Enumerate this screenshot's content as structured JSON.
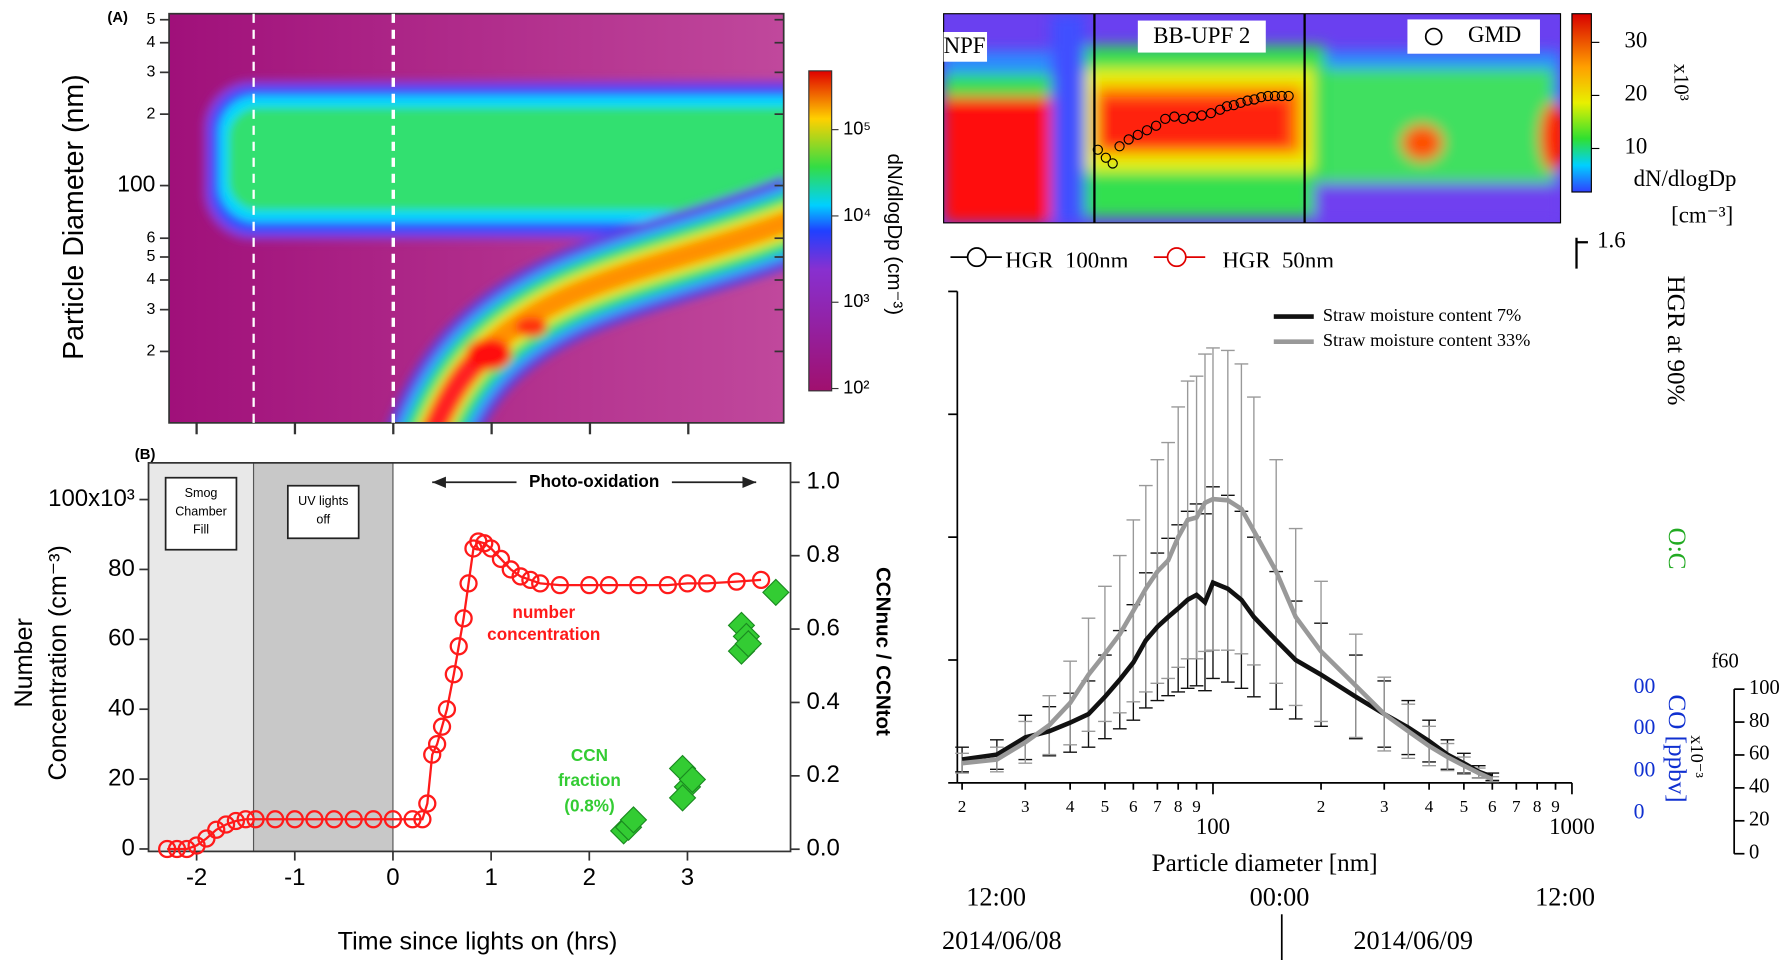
{
  "chart_data": [
    {
      "type": "heatmap",
      "title": "(A)",
      "y_label": "Particle Diameter (nm)",
      "log_y": true,
      "xlim": [
        -2.28,
        3.97
      ],
      "xticks": [
        -2,
        -1,
        0,
        1,
        2,
        3
      ],
      "ylim": [
        10,
        530
      ],
      "yticks": [
        {
          "value": 500,
          "label": "5"
        },
        {
          "value": 400,
          "label": "4"
        },
        {
          "value": 300,
          "label": "3"
        },
        {
          "value": 200,
          "label": "2"
        },
        100,
        {
          "value": 60,
          "label": "6"
        },
        {
          "value": 50,
          "label": "5"
        },
        {
          "value": 40,
          "label": "4"
        },
        {
          "value": 30,
          "label": "3"
        },
        {
          "value": 20,
          "label": "2"
        }
      ],
      "marker_lines": [
        -1.42,
        0
      ],
      "colorbar": {
        "label": "dN/dlogDp (cm⁻³)",
        "log": true,
        "lim": [
          94,
          480000
        ],
        "ticks": [
          {
            "value": 100000,
            "label": "10⁵"
          },
          {
            "value": 10000,
            "label": "10⁴"
          },
          {
            "value": 1000,
            "label": "10³"
          },
          {
            "value": 100,
            "label": "10²"
          }
        ]
      }
    },
    {
      "type": "line",
      "title": "(B)",
      "x_label": "Time since lights on (hrs)",
      "y_label": [
        "Number",
        "Concentration (cm⁻³)"
      ],
      "y2_label": "CCNnuc / CCNtot",
      "xlim": [
        -2.49,
        4.05
      ],
      "xticks": [
        -2,
        -1,
        0,
        1,
        2,
        3
      ],
      "ylim": [
        -0.7,
        110.5
      ],
      "yticks": [
        0,
        20,
        40,
        60,
        80,
        {
          "value": 100,
          "label": "100x10³"
        }
      ],
      "y2lim": [
        -0.006,
        1.053
      ],
      "y2ticks": [
        {
          "value": 0,
          "label": "0.0"
        },
        {
          "value": 0.2,
          "label": "0.2"
        },
        {
          "value": 0.4,
          "label": "0.4"
        },
        {
          "value": 0.6,
          "label": "0.6"
        },
        {
          "value": 0.8,
          "label": "0.8"
        },
        {
          "value": 1,
          "label": "1.0"
        }
      ],
      "regions": [
        {
          "x": [
            -2.49,
            -1.42
          ],
          "label": [
            "Smog",
            "Chamber",
            "Fill"
          ],
          "color": "#e8e8e8"
        },
        {
          "x": [
            -1.42,
            0
          ],
          "label": [
            "UV lights",
            "off"
          ],
          "color": "#c8c8c8"
        }
      ],
      "photo_oxidation": {
        "text": "Photo-oxidation",
        "x": [
          0.4,
          3.7
        ]
      },
      "series": [
        {
          "label": [
            "number",
            "concentration"
          ],
          "color": "#ff1a1a",
          "x": [
            -2.3,
            -2.2,
            -2.1,
            -2.0,
            -1.9,
            -1.8,
            -1.7,
            -1.6,
            -1.5,
            -1.4,
            -1.2,
            -1.0,
            -0.8,
            -0.6,
            -0.4,
            -0.2,
            0.0,
            0.2,
            0.3,
            0.35,
            0.4,
            0.45,
            0.5,
            0.55,
            0.62,
            0.67,
            0.72,
            0.77,
            0.82,
            0.87,
            0.93,
            1.0,
            1.1,
            1.2,
            1.3,
            1.4,
            1.5,
            1.7,
            2.0,
            2.2,
            2.5,
            2.8,
            3.0,
            3.2,
            3.5,
            3.75
          ],
          "values": [
            0,
            0,
            0,
            1,
            3,
            5.5,
            7,
            8,
            8.5,
            8.5,
            8.5,
            8.5,
            8.5,
            8.5,
            8.5,
            8.5,
            8.5,
            8.5,
            8.5,
            13,
            27,
            30,
            35,
            40,
            50,
            58,
            66,
            76,
            86,
            88,
            87.5,
            86,
            83,
            80,
            78,
            77,
            76,
            75.5,
            75.5,
            75.5,
            75.5,
            75.5,
            76,
            76,
            76.5,
            77
          ]
        },
        {
          "label": [
            "CCN",
            "fraction",
            "(0.8%)"
          ],
          "color": "#33cc33",
          "axis": "y2",
          "x": [
            2.35,
            2.4,
            2.45,
            2.95,
            3.0,
            2.95,
            3.05,
            3.55,
            3.6,
            3.55,
            3.62,
            3.9
          ],
          "values": [
            0.05,
            0.06,
            0.08,
            0.22,
            0.17,
            0.14,
            0.19,
            0.61,
            0.58,
            0.54,
            0.56,
            0.7
          ]
        }
      ]
    },
    {
      "type": "heatmap",
      "labels": [
        "NPF",
        "BB-UPF 2"
      ],
      "legend": "GMD",
      "colorbar": {
        "label": [
          "dN/dlogDp",
          "[cm⁻³]"
        ],
        "scale": "x10³",
        "lim": [
          1.8,
          35.4
        ],
        "ticks": [
          10,
          20,
          30
        ]
      }
    },
    {
      "type": "line",
      "x_label": "Particle diameter [nm]",
      "log_x": true,
      "xlim": [
        19.4,
        1000
      ],
      "ylim": [
        0,
        4
      ],
      "xticks": [
        {
          "value": 20,
          "label": "2"
        },
        {
          "value": 30,
          "label": "3"
        },
        {
          "value": 40,
          "label": "4"
        },
        {
          "value": 50,
          "label": "5"
        },
        {
          "value": 60,
          "label": "6"
        },
        {
          "value": 70,
          "label": "7"
        },
        {
          "value": 80,
          "label": "8"
        },
        {
          "value": 90,
          "label": "9"
        },
        100,
        {
          "value": 200,
          "label": "2"
        },
        {
          "value": 300,
          "label": "3"
        },
        {
          "value": 400,
          "label": "4"
        },
        {
          "value": 500,
          "label": "5"
        },
        {
          "value": 600,
          "label": "6"
        },
        {
          "value": 700,
          "label": "7"
        },
        {
          "value": 800,
          "label": "8"
        },
        {
          "value": 900,
          "label": "9"
        },
        1000
      ],
      "x": [
        20,
        25,
        30,
        35,
        40,
        45,
        50,
        55,
        60,
        65,
        70,
        75,
        80,
        85,
        90,
        95,
        100,
        110,
        120,
        130,
        150,
        170,
        200,
        250,
        300,
        350,
        400,
        450,
        500,
        550,
        600
      ],
      "series": [
        {
          "name": "Straw moisture content 7%",
          "color": "#111111",
          "values": [
            0.19,
            0.23,
            0.37,
            0.42,
            0.49,
            0.56,
            0.7,
            0.84,
            0.98,
            1.16,
            1.27,
            1.35,
            1.42,
            1.49,
            1.53,
            1.47,
            1.63,
            1.58,
            1.49,
            1.35,
            1.16,
            1.0,
            0.88,
            0.7,
            0.56,
            0.45,
            0.34,
            0.23,
            0.16,
            0.09,
            0.05
          ],
          "errors": [
            0.1,
            0.12,
            0.18,
            0.2,
            0.24,
            0.27,
            0.34,
            0.4,
            0.47,
            0.55,
            0.6,
            0.64,
            0.68,
            0.72,
            0.74,
            0.72,
            0.78,
            0.76,
            0.72,
            0.65,
            0.56,
            0.48,
            0.42,
            0.34,
            0.27,
            0.22,
            0.17,
            0.12,
            0.08,
            0.05,
            0.03
          ]
        },
        {
          "name": "Straw moisture content 33%",
          "color": "#999999",
          "values": [
            0.16,
            0.19,
            0.33,
            0.47,
            0.65,
            0.88,
            1.05,
            1.21,
            1.4,
            1.58,
            1.72,
            1.81,
            2.0,
            2.14,
            2.16,
            2.28,
            2.31,
            2.3,
            2.23,
            2.05,
            1.72,
            1.35,
            1.07,
            0.79,
            0.56,
            0.42,
            0.3,
            0.21,
            0.14,
            0.08,
            0.03
          ],
          "errors": [
            0.08,
            0.1,
            0.17,
            0.24,
            0.34,
            0.46,
            0.55,
            0.64,
            0.74,
            0.84,
            0.91,
            0.96,
            1.06,
            1.13,
            1.15,
            1.21,
            1.23,
            1.22,
            1.18,
            1.09,
            0.91,
            0.72,
            0.57,
            0.42,
            0.3,
            0.22,
            0.16,
            0.11,
            0.07,
            0.04,
            0.02
          ]
        }
      ]
    },
    {
      "type": "axes",
      "legend": [
        "HGR_100nm",
        "HGR_50nm"
      ],
      "hgr_ticks": [
        1.6
      ],
      "hgr_label": "HGR at 90%",
      "oc_label": "O:C",
      "co_label": "CO [ppbv]",
      "co_ticks": [
        "00",
        "00",
        "00",
        "0"
      ],
      "f60": {
        "label": "f60",
        "scale": "x10⁻³",
        "ylim": [
          0,
          100
        ],
        "yticks": [
          0,
          20,
          40,
          60,
          80,
          100
        ]
      },
      "time_labels": [
        "12:00",
        "00:00",
        "12:00"
      ],
      "date_labels": [
        "2014/06/08",
        "2014/06/09"
      ]
    }
  ]
}
